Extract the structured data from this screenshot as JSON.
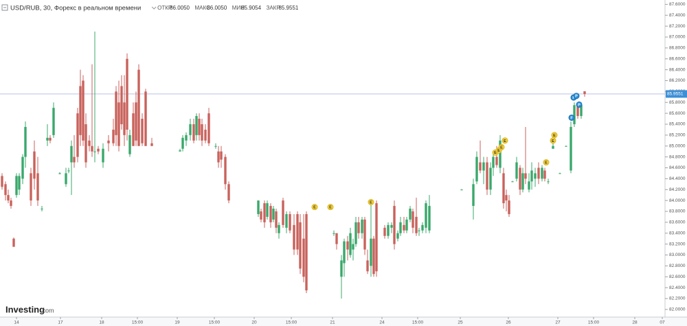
{
  "chart_data": {
    "type": "candlestick",
    "title": "USD/RUB, 30, Форекс в реальном времени",
    "ohlc_header": [
      {
        "label": "ОТКР",
        "value": "86.0050"
      },
      {
        "label": "МАКС",
        "value": "86.0050"
      },
      {
        "label": "МИН",
        "value": "85.9054"
      },
      {
        "label": "ЗАКР",
        "value": "85.9551"
      }
    ],
    "watermark": {
      "brand": "Investing",
      "domain": ".com"
    },
    "up_color": "#3aa86b",
    "down_color": "#c9625c",
    "last_price_color": "#3d8fd6",
    "xlim": [
      0,
      242
    ],
    "ylim": [
      81.86,
      87.68
    ],
    "xticks": [
      {
        "value": 6,
        "label": "14"
      },
      {
        "value": 22,
        "label": "17"
      },
      {
        "value": 37,
        "label": "18"
      },
      {
        "value": 50,
        "label": "15:00"
      },
      {
        "value": 64.5,
        "label": "19"
      },
      {
        "value": 78,
        "label": "15:00"
      },
      {
        "value": 92.5,
        "label": "20"
      },
      {
        "value": 106,
        "label": "15:00"
      },
      {
        "value": 121,
        "label": "21"
      },
      {
        "value": 139,
        "label": "24"
      },
      {
        "value": 152,
        "label": "15:00"
      },
      {
        "value": 167.5,
        "label": "25"
      },
      {
        "value": 185,
        "label": "26"
      },
      {
        "value": 203,
        "label": "27"
      },
      {
        "value": 216,
        "label": "15:00"
      },
      {
        "value": 231,
        "label": "28"
      },
      {
        "value": 241,
        "label": "07"
      }
    ],
    "yticks": [
      {
        "value": 87.6,
        "label": "87.6000"
      },
      {
        "value": 87.4,
        "label": "87.4000"
      },
      {
        "value": 87.2,
        "label": "87.2000"
      },
      {
        "value": 87.0,
        "label": "87.0000"
      },
      {
        "value": 86.8,
        "label": "86.8000"
      },
      {
        "value": 86.6,
        "label": "86.6000"
      },
      {
        "value": 86.4,
        "label": "86.4000"
      },
      {
        "value": 86.2,
        "label": "86.2000"
      },
      {
        "value": 86.0,
        "label": "86.0000"
      },
      {
        "value": 85.8,
        "label": "85.8000"
      },
      {
        "value": 85.6,
        "label": "85.6000"
      },
      {
        "value": 85.4,
        "label": "85.4000"
      },
      {
        "value": 85.2,
        "label": "85.2000"
      },
      {
        "value": 85.0,
        "label": "85.0000"
      },
      {
        "value": 84.8,
        "label": "84.8000"
      },
      {
        "value": 84.6,
        "label": "84.6000"
      },
      {
        "value": 84.4,
        "label": "84.4000"
      },
      {
        "value": 84.2,
        "label": "84.2000"
      },
      {
        "value": 84.0,
        "label": "84.0000"
      },
      {
        "value": 83.8,
        "label": "83.8000"
      },
      {
        "value": 83.6,
        "label": "83.6000"
      },
      {
        "value": 83.4,
        "label": "83.4000"
      },
      {
        "value": 83.2,
        "label": "83.2000"
      },
      {
        "value": 83.0,
        "label": "83.0000"
      },
      {
        "value": 82.8,
        "label": "82.8000"
      },
      {
        "value": 82.6,
        "label": "82.6000"
      },
      {
        "value": 82.4,
        "label": "82.4000"
      },
      {
        "value": 82.2,
        "label": "82.2000"
      },
      {
        "value": 82.0,
        "label": "82.0000"
      }
    ],
    "last_price": 85.9551,
    "x": [
      0.75,
      2,
      3,
      4,
      5,
      6,
      7,
      8.25,
      9.25,
      11.25,
      12.5,
      13.75,
      15.25,
      17.25,
      18.25,
      19.5,
      21.75,
      24,
      25,
      26,
      27,
      28.25,
      29.25,
      30.25,
      31.25,
      32.5,
      33.5,
      34.5,
      35.75,
      37.5,
      39.5,
      41.25,
      42.25,
      43.25,
      44.25,
      45.25,
      46.25,
      47.25,
      48.5,
      49.5,
      50.5,
      51.75,
      53,
      55.25,
      65.5,
      66.5,
      67.75,
      69.25,
      70.5,
      71.5,
      72.5,
      73.5,
      74.75,
      76,
      78.5,
      79.5,
      80.5,
      82,
      83.25,
      94,
      95,
      96.25,
      97.25,
      98.5,
      99.5,
      100.5,
      101.5,
      103,
      104.25,
      105.5,
      107,
      108.25,
      109.25,
      110.5,
      111.5,
      121.5,
      122.5,
      124.25,
      125.25,
      126.5,
      127.5,
      128.5,
      129.5,
      130.5,
      131.75,
      132.75,
      133.75,
      135,
      136,
      137,
      140,
      141.25,
      142.5,
      143.5,
      144.75,
      145.75,
      147,
      148,
      149.25,
      150.25,
      151.5,
      152.5,
      153.75,
      155,
      156.25,
      168,
      172.25,
      173.5,
      174.75,
      176,
      177.25,
      178.5,
      179.5,
      180.75,
      182,
      183.25,
      184.25,
      185.25,
      186.5,
      188,
      189.25,
      190.25,
      191.25,
      192.5,
      193.5,
      194.75,
      196,
      197.25,
      198.25,
      199.5,
      201.25,
      203.75,
      206,
      207.75,
      209,
      210.25,
      211.5,
      212.75
    ],
    "open": [
      84.45,
      84.3,
      84.1,
      84.0,
      83.3,
      84.1,
      84.2,
      84.4,
      84.8,
      84.5,
      84.9,
      84.5,
      83.85,
      85.1,
      85.15,
      85.2,
      84.5,
      84.3,
      84.55,
      84.7,
      84.8,
      85.6,
      86.1,
      86.2,
      85.4,
      85.1,
      85.0,
      84.9,
      84.95,
      84.7,
      85.1,
      85.3,
      86.0,
      85.8,
      86.1,
      85.8,
      86.6,
      84.85,
      85.6,
      85.8,
      86.4,
      85.5,
      86.0,
      85.05,
      84.9,
      84.95,
      85.1,
      85.2,
      85.4,
      85.2,
      85.5,
      85.4,
      85.3,
      85.6,
      85.0,
      84.9,
      84.9,
      84.8,
      84.3,
      83.75,
      83.8,
      83.95,
      83.7,
      83.9,
      83.65,
      83.8,
      83.4,
      84.0,
      83.5,
      83.75,
      83.55,
      83.75,
      83.6,
      83.3,
      83.75,
      83.4,
      83.4,
      82.6,
      82.85,
      83.25,
      83.0,
      83.1,
      83.2,
      83.6,
      83.4,
      83.65,
      82.9,
      82.8,
      83.3,
      83.95,
      83.5,
      83.35,
      83.5,
      83.9,
      83.3,
      83.4,
      83.55,
      83.45,
      83.65,
      83.8,
      83.7,
      83.45,
      83.45,
      83.5,
      83.45,
      84.2,
      83.9,
      84.35,
      84.7,
      84.55,
      84.7,
      84.2,
      84.6,
      84.8,
      84.6,
      84.5,
      84.1,
      84.0,
      84.35,
      84.4,
      84.6,
      84.2,
      84.5,
      84.2,
      84.35,
      84.4,
      84.6,
      84.4,
      84.55,
      84.35,
      84.95,
      84.5,
      85.0,
      84.55,
      85.4,
      85.75,
      85.55,
      86.005
    ],
    "high": [
      84.5,
      84.35,
      84.2,
      84.05,
      83.32,
      84.5,
      84.5,
      84.85,
      85.45,
      84.6,
      85.1,
      84.8,
      83.9,
      85.4,
      85.2,
      85.8,
      84.52,
      84.6,
      84.6,
      85.1,
      85.2,
      85.7,
      86.4,
      86.3,
      85.6,
      85.2,
      86.5,
      87.1,
      85.0,
      85.05,
      85.2,
      85.5,
      86.1,
      86.2,
      86.3,
      86.3,
      86.7,
      85.3,
      85.8,
      86.0,
      86.5,
      85.6,
      86.05,
      85.15,
      84.95,
      85.2,
      85.25,
      85.5,
      85.5,
      85.6,
      85.6,
      85.5,
      85.4,
      85.7,
      85.05,
      85.0,
      85.0,
      84.85,
      84.35,
      84.0,
      83.85,
      84.0,
      84.0,
      83.95,
      83.9,
      83.85,
      83.6,
      84.05,
      83.8,
      83.8,
      83.75,
      83.8,
      83.75,
      83.75,
      83.8,
      83.45,
      83.4,
      83.0,
      83.3,
      83.35,
      83.5,
      83.3,
      83.7,
      83.7,
      83.7,
      83.7,
      83.1,
      84.0,
      83.35,
      84.0,
      83.55,
      83.6,
      83.6,
      84.0,
      83.45,
      83.7,
      83.7,
      83.7,
      83.9,
      83.85,
      84.05,
      83.5,
      83.6,
      84.0,
      84.1,
      84.21,
      84.4,
      84.9,
      85.1,
      84.8,
      84.8,
      84.7,
      84.9,
      85.0,
      85.2,
      84.6,
      84.2,
      84.1,
      84.36,
      84.8,
      84.65,
      84.6,
      85.35,
      84.5,
      84.7,
      84.6,
      84.7,
      84.65,
      84.6,
      84.4,
      85.05,
      84.51,
      85.01,
      85.45,
      85.8,
      85.8,
      85.8,
      86.005
    ],
    "low": [
      84.2,
      84.0,
      83.95,
      83.85,
      83.15,
      84.05,
      84.1,
      84.3,
      84.6,
      83.9,
      84.2,
      83.9,
      83.8,
      85.0,
      85.05,
      85.15,
      84.48,
      84.25,
      84.5,
      84.1,
      84.6,
      84.7,
      85.0,
      85.0,
      84.6,
      84.9,
      84.8,
      84.7,
      84.85,
      84.6,
      84.9,
      85.0,
      85.0,
      84.9,
      85.3,
      85.0,
      85.1,
      84.8,
      85.0,
      85.0,
      85.0,
      85.0,
      85.0,
      85.0,
      84.9,
      84.9,
      85.0,
      85.1,
      85.05,
      85.1,
      85.1,
      85.0,
      85.05,
      85.0,
      84.95,
      84.6,
      84.6,
      84.2,
      83.95,
      83.7,
      83.6,
      83.5,
      83.65,
      83.5,
      83.6,
      83.4,
      83.3,
      83.5,
      83.4,
      83.4,
      83.0,
      83.0,
      82.65,
      82.5,
      82.3,
      83.35,
      83.1,
      82.2,
      82.6,
      82.9,
      82.95,
      82.9,
      83.15,
      83.3,
      83.3,
      83.0,
      82.65,
      82.6,
      82.6,
      82.6,
      83.3,
      83.3,
      83.4,
      83.1,
      83.25,
      83.35,
      83.4,
      83.4,
      83.6,
      83.4,
      83.35,
      83.35,
      83.4,
      83.4,
      83.4,
      84.19,
      83.65,
      84.3,
      84.5,
      84.3,
      84.1,
      84.1,
      84.45,
      84.6,
      84.5,
      83.85,
      83.8,
      83.7,
      84.34,
      84.35,
      84.1,
      84.15,
      84.3,
      84.15,
      84.2,
      84.25,
      84.3,
      84.35,
      84.35,
      84.3,
      84.95,
      84.49,
      84.99,
      84.5,
      85.35,
      85.5,
      85.5,
      85.9054
    ],
    "close": [
      84.25,
      84.1,
      84.0,
      83.9,
      83.15,
      84.45,
      84.45,
      84.8,
      85.35,
      84.0,
      84.4,
      84.0,
      83.85,
      85.15,
      85.1,
      85.7,
      84.5,
      84.5,
      84.55,
      85.0,
      84.7,
      84.8,
      85.2,
      85.1,
      84.7,
      85.0,
      84.9,
      84.9,
      84.9,
      84.95,
      85.05,
      85.05,
      85.2,
      85.0,
      85.4,
      85.2,
      85.3,
      85.2,
      85.0,
      85.1,
      85.0,
      85.05,
      85.0,
      85.0,
      84.92,
      85.15,
      85.2,
      85.4,
      85.1,
      85.55,
      85.2,
      85.1,
      85.1,
      85.05,
      85.0,
      84.7,
      84.75,
      84.3,
      84.0,
      84.0,
      83.65,
      83.6,
      83.95,
      83.6,
      83.85,
      83.5,
      83.55,
      83.55,
      83.75,
      83.45,
      83.1,
      83.1,
      82.75,
      82.6,
      82.35,
      83.4,
      83.2,
      82.9,
      83.25,
      83.1,
      83.4,
      83.2,
      83.6,
      83.4,
      83.65,
      83.1,
      82.7,
      83.3,
      82.65,
      82.7,
      83.35,
      83.55,
      83.55,
      83.2,
      83.4,
      83.6,
      83.45,
      83.65,
      83.85,
      83.5,
      83.4,
      83.45,
      83.55,
      83.95,
      83.9,
      84.2,
      84.3,
      84.8,
      84.55,
      84.7,
      84.2,
      84.6,
      84.8,
      84.65,
      85.1,
      83.95,
      84.0,
      83.75,
      84.35,
      84.7,
      84.2,
      84.5,
      84.4,
      84.35,
      84.55,
      84.5,
      84.4,
      84.6,
      84.4,
      84.35,
      85.0,
      84.5,
      85.0,
      85.35,
      85.75,
      85.55,
      85.75,
      85.9551
    ],
    "events": [
      {
        "x": 114.5,
        "y": 83.88,
        "label": "E"
      },
      {
        "x": 120.25,
        "y": 83.88,
        "label": "E"
      },
      {
        "x": 135,
        "y": 83.97,
        "label": "E"
      },
      {
        "x": 180.25,
        "y": 84.88,
        "label": "E"
      },
      {
        "x": 181.5,
        "y": 84.92,
        "label": "E"
      },
      {
        "x": 182.5,
        "y": 84.98,
        "label": "E"
      },
      {
        "x": 183.75,
        "y": 85.1,
        "label": "E"
      },
      {
        "x": 198.75,
        "y": 84.7,
        "label": "E"
      },
      {
        "x": 201.25,
        "y": 85.1,
        "label": "E"
      },
      {
        "x": 201.75,
        "y": 85.2,
        "label": "E"
      },
      {
        "x": 208,
        "y": 85.52,
        "label": "F"
      },
      {
        "x": 208.75,
        "y": 85.89,
        "label": "F"
      },
      {
        "x": 209.75,
        "y": 85.92,
        "label": "P"
      },
      {
        "x": 210.75,
        "y": 85.76,
        "label": "P"
      }
    ]
  }
}
